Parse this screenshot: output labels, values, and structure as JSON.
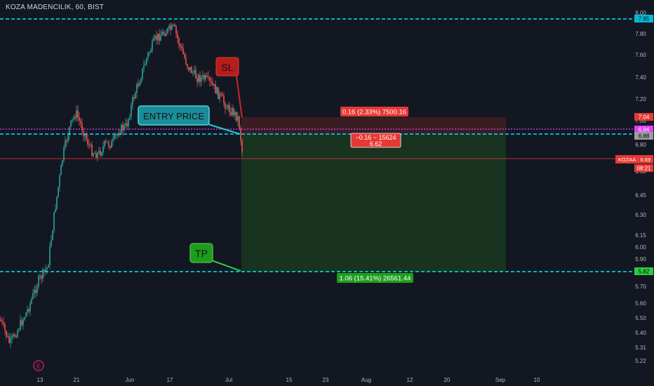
{
  "symbol_title": "KOZA MADENCILIK, 60, BIST",
  "earnings_marker": "E",
  "colors": {
    "background": "#131722",
    "axis_text": "#b2b5be",
    "up": "#26a69a",
    "up_body": "#4caf50",
    "down": "#ef5350",
    "cyan_line": "#00e5ff",
    "magenta_line": "#e040fb",
    "current_price_line": "#f23645",
    "stop_zone": "#3d1e23",
    "target_zone": "#1b3a26",
    "sl_callout": "#b71c1c",
    "entry_callout": "#1a8a99",
    "tp_callout": "#1b9e1b"
  },
  "callouts": {
    "sl": "SL",
    "entry": "ENTRY PRICE",
    "tp": "TP"
  },
  "position": {
    "stop_label": "0.16 (2.33%) 7500.16",
    "center_label_line1": "−0.16 ~ 15624",
    "center_label_line2": "6.62",
    "target_label": "1.06 (15.41%) 26561.44",
    "entry_price": 6.88,
    "stop_price": 7.04,
    "target_price": 5.82
  },
  "price_badges": {
    "top_line": "7.95",
    "stop": "7.04",
    "magenta": "6.94",
    "entry": "6.88",
    "symbol_price": "KOZAA · 6.69",
    "countdown": "08:21",
    "target": "5.82"
  },
  "chart_data": {
    "type": "candlestick",
    "title": "KOZA MADENCILIK, 60, BIST",
    "y_tick_labels": [
      "8.00",
      "7.80",
      "7.60",
      "7.40",
      "7.20",
      "7.00",
      "6.80",
      "6.60",
      "6.45",
      "6.30",
      "6.15",
      "6.00",
      "5.90",
      "5.80",
      "5.70",
      "5.60",
      "5.50",
      "5.40",
      "5.31",
      "5.22"
    ],
    "x_tick_labels": [
      "13",
      "21",
      "Jun",
      "17",
      "Jul",
      "15",
      "23",
      "Aug",
      "12",
      "20",
      "Sep",
      "10"
    ],
    "ylim": [
      5.19,
      8.02
    ],
    "price_path": [
      {
        "t": "start",
        "price": 5.45
      },
      {
        "t": "13",
        "price": 5.7
      },
      {
        "t": "early",
        "price": 6.6
      },
      {
        "t": "21",
        "price": 7.0
      },
      {
        "t": "pre-Jun",
        "price": 6.75
      },
      {
        "t": "Jun",
        "price": 7.45
      },
      {
        "t": "mid-Jun",
        "price": 7.85
      },
      {
        "t": "17",
        "price": 7.92
      },
      {
        "t": "late-Jun",
        "price": 7.35
      },
      {
        "t": "Jul",
        "price": 7.0
      },
      {
        "t": "last",
        "price": 6.69
      }
    ],
    "horizontal_lines": [
      {
        "price": 7.95,
        "style": "dashed",
        "color": "cyan"
      },
      {
        "price": 6.94,
        "style": "dotted",
        "color": "magenta"
      },
      {
        "price": 6.88,
        "style": "dashed",
        "color": "cyan"
      },
      {
        "price": 6.69,
        "style": "solid-thin",
        "color": "red"
      },
      {
        "price": 5.82,
        "style": "dashed",
        "color": "cyan"
      }
    ],
    "short_position": {
      "entry": 6.88,
      "stop": 7.04,
      "target": 5.82
    },
    "grid": false
  }
}
